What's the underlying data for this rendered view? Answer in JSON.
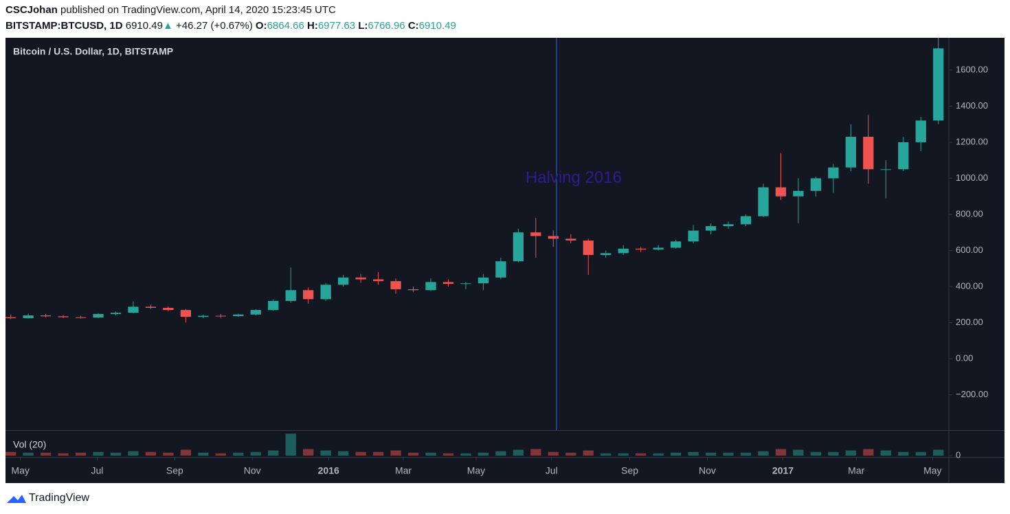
{
  "header": {
    "author": "CSCJohan",
    "published": "published on TradingView.com, April 14, 2020 15:23:45 UTC",
    "symbol": "BITSTAMP:BTCUSD, 1D",
    "last": "6910.49",
    "arrow": "▲",
    "change": "+46.27 (+0.67%)",
    "o_label": "O:",
    "o": "6864.66",
    "h_label": "H:",
    "h": "6977.63",
    "l_label": "L:",
    "l": "6766.96",
    "c_label": "C:",
    "c": "6910.49"
  },
  "footer": {
    "brand": "TradingView"
  },
  "chart_data": {
    "type": "candlestick",
    "title": "Bitcoin / U.S. Dollar, 1D, BITSTAMP",
    "up_color": "#26a69a",
    "down_color": "#ef5350",
    "xlim": [
      -0.3,
      53.6
    ],
    "xticks": [
      {
        "value": 0.55,
        "label": "May"
      },
      {
        "value": 4.94,
        "label": "Jul"
      },
      {
        "value": 9.37,
        "label": "Sep"
      },
      {
        "value": 13.8,
        "label": "Nov"
      },
      {
        "value": 18.16,
        "label": "2016"
      },
      {
        "value": 22.43,
        "label": "Mar"
      },
      {
        "value": 26.59,
        "label": "May"
      },
      {
        "value": 30.9,
        "label": "Jul"
      },
      {
        "value": 35.37,
        "label": "Sep"
      },
      {
        "value": 39.8,
        "label": "Nov"
      },
      {
        "value": 44.12,
        "label": "2017"
      },
      {
        "value": 48.31,
        "label": "Mar"
      },
      {
        "value": 52.67,
        "label": "May"
      }
    ],
    "ylim": [
      -396,
      1771
    ],
    "yticks": [
      {
        "value": -200,
        "label": "−200.00"
      },
      {
        "value": 0,
        "label": "0.00"
      },
      {
        "value": 200,
        "label": "200.00"
      },
      {
        "value": 400,
        "label": "400.00"
      },
      {
        "value": 600,
        "label": "600.00"
      },
      {
        "value": 800,
        "label": "800.00"
      },
      {
        "value": 1000,
        "label": "1000.00"
      },
      {
        "value": 1200,
        "label": "1200.00"
      },
      {
        "value": 1400,
        "label": "1400.00"
      },
      {
        "value": 1600,
        "label": "1600.00"
      }
    ],
    "open": [
      230,
      225,
      240,
      235,
      230,
      228,
      248,
      255,
      288,
      282,
      270,
      232,
      238,
      236,
      245,
      270,
      320,
      380,
      330,
      410,
      450,
      440,
      430,
      385,
      380,
      425,
      415,
      418,
      450,
      540,
      700,
      680,
      665,
      655,
      575,
      585,
      610,
      605,
      615,
      650,
      710,
      735,
      745,
      790,
      950,
      900,
      930,
      1000,
      1060,
      1230,
      1050,
      1050,
      1200,
      1320
    ],
    "high": [
      245,
      250,
      248,
      242,
      238,
      252,
      262,
      318,
      300,
      290,
      275,
      245,
      248,
      250,
      275,
      330,
      505,
      395,
      420,
      465,
      470,
      480,
      445,
      400,
      445,
      440,
      425,
      470,
      560,
      720,
      780,
      710,
      690,
      665,
      600,
      630,
      620,
      630,
      660,
      740,
      750,
      760,
      800,
      970,
      1140,
      1000,
      1010,
      1080,
      1300,
      1350,
      1100,
      1230,
      1340,
      1780
    ],
    "low": [
      220,
      222,
      230,
      225,
      222,
      225,
      240,
      252,
      275,
      262,
      200,
      225,
      228,
      232,
      240,
      265,
      310,
      305,
      320,
      400,
      420,
      410,
      360,
      370,
      375,
      400,
      385,
      380,
      440,
      535,
      560,
      620,
      640,
      465,
      560,
      575,
      590,
      600,
      610,
      640,
      690,
      720,
      735,
      785,
      880,
      750,
      900,
      920,
      1040,
      970,
      890,
      1040,
      1150,
      1300
    ],
    "close": [
      225,
      240,
      235,
      230,
      228,
      248,
      255,
      288,
      282,
      270,
      232,
      238,
      236,
      245,
      270,
      320,
      380,
      330,
      410,
      450,
      440,
      430,
      385,
      380,
      425,
      415,
      418,
      450,
      540,
      700,
      680,
      665,
      655,
      575,
      585,
      610,
      605,
      615,
      650,
      710,
      735,
      745,
      790,
      950,
      900,
      930,
      1000,
      1060,
      1230,
      1050,
      1050,
      1200,
      1320,
      1720
    ],
    "volume": {
      "title": "Vol (20)",
      "ylim": [
        0,
        32
      ],
      "yticks": [
        0
      ],
      "values": [
        5,
        4,
        4,
        3,
        4,
        5,
        4,
        6,
        5,
        4,
        8,
        4,
        3,
        4,
        5,
        7,
        30,
        9,
        7,
        6,
        5,
        5,
        7,
        4,
        4,
        3,
        3,
        4,
        6,
        8,
        9,
        5,
        4,
        7,
        3,
        3,
        3,
        3,
        4,
        5,
        4,
        4,
        4,
        6,
        9,
        8,
        5,
        5,
        7,
        9,
        7,
        5,
        5,
        8
      ]
    },
    "annotations": [
      {
        "text": "Halving 2016",
        "x": 31.18,
        "y": 1000
      }
    ]
  }
}
